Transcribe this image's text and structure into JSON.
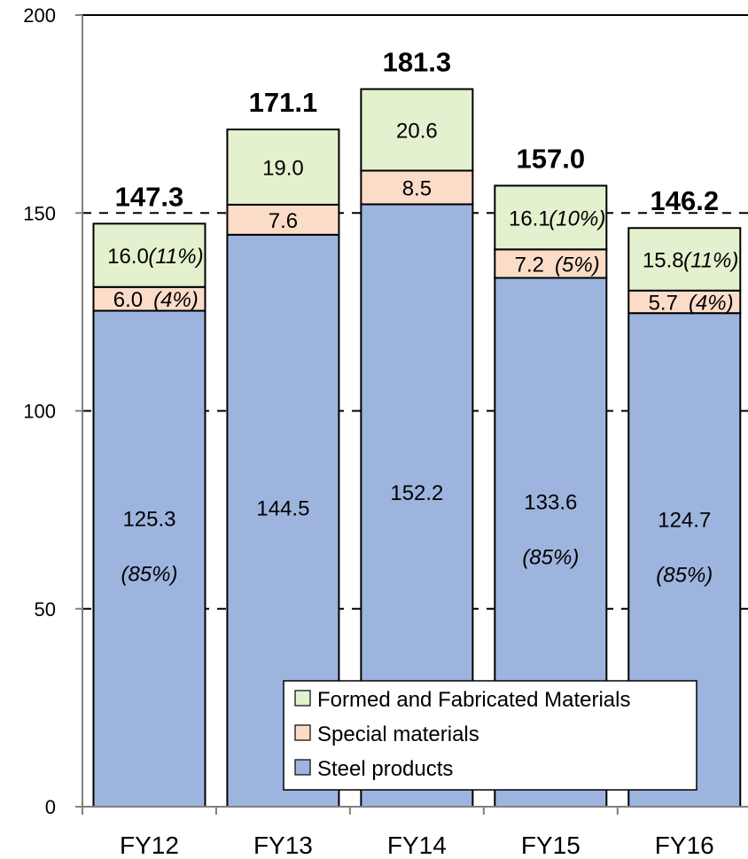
{
  "chart_data": {
    "type": "bar",
    "stacked": true,
    "categories": [
      "FY12",
      "FY13",
      "FY14",
      "FY15",
      "FY16"
    ],
    "series": [
      {
        "name": "Steel products",
        "values": [
          125.3,
          144.5,
          152.2,
          133.6,
          124.7
        ],
        "labels": [
          "125.3",
          "144.5",
          "152.2",
          "133.6",
          "124.7"
        ],
        "shares": [
          "(85%)",
          "",
          "",
          "(85%)",
          "(85%)"
        ],
        "color": "#9db5de"
      },
      {
        "name": "Special materials",
        "values": [
          6.0,
          7.6,
          8.5,
          7.2,
          5.7
        ],
        "labels": [
          "6.0",
          "7.6",
          "8.5",
          "7.2",
          "5.7"
        ],
        "shares": [
          "(4%)",
          "",
          "",
          "(5%)",
          "(4%)"
        ],
        "color": "#fbdcc8"
      },
      {
        "name": "Formed and Fabricated Materials",
        "values": [
          16.0,
          19.0,
          20.6,
          16.1,
          15.8
        ],
        "labels": [
          "16.0",
          "19.0",
          "20.6",
          "16.1",
          "15.8"
        ],
        "shares": [
          "(11%)",
          "",
          "",
          "(10%)",
          "(11%)"
        ],
        "color": "#e4f1cf"
      }
    ],
    "totals": [
      "147.3",
      "171.1",
      "181.3",
      "157.0",
      "146.2"
    ],
    "yticks": [
      "0",
      "50",
      "100",
      "150",
      "200"
    ],
    "ylim": [
      0,
      200
    ],
    "grid": "dashed",
    "legend": "bottom-right",
    "title": "",
    "xlabel": "",
    "ylabel": ""
  }
}
